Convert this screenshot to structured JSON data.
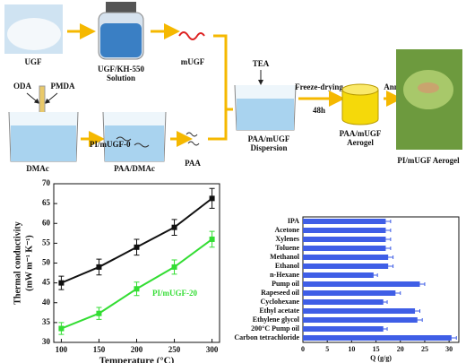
{
  "diagram": {
    "ugf": "UGF",
    "kh550": [
      "UGF/KH-550",
      "Solution"
    ],
    "mugf": "mUGF",
    "oda": "ODA",
    "pmda": "PMDA",
    "dmac": "DMAc",
    "paa_dmac": "PAA/DMAc",
    "paa": "PAA",
    "tea": "TEA",
    "dispersion": [
      "PAA/mUGF",
      "Dispersion"
    ],
    "freeze": "Freeze-drying",
    "hours": "48h",
    "aerogel": [
      "PAA/mUGF",
      "Aerogel"
    ],
    "annealing": "Annealing",
    "final": "PI/mUGF  Aerogel"
  },
  "chart_data": [
    {
      "type": "line",
      "x_label": "Temperature (°C)",
      "y_label": [
        "Thermal conductivity",
        "(mW m⁻¹ K⁻¹)"
      ],
      "x": [
        100,
        150,
        200,
        250,
        300
      ],
      "xlim": [
        90,
        310
      ],
      "xticks": [
        100,
        150,
        200,
        250,
        300
      ],
      "ylim": [
        30,
        70
      ],
      "yticks": [
        30,
        35,
        40,
        45,
        50,
        55,
        60,
        65,
        70
      ],
      "series": [
        {
          "name": "PI/mUGF-0",
          "color": "#111111",
          "values": [
            45,
            49,
            54,
            59,
            66.3
          ],
          "errors": [
            1.7,
            2,
            2,
            2,
            2.5
          ]
        },
        {
          "name": "PI/mUGF-20",
          "color": "#33dd33",
          "values": [
            33.5,
            37.3,
            43.5,
            49,
            56
          ],
          "errors": [
            1.5,
            1.5,
            1.7,
            1.8,
            2
          ]
        }
      ]
    },
    {
      "type": "barh",
      "x_label": "Q (g/g)",
      "categories": [
        "IPA",
        "Acetone",
        "Xylenes",
        "Toluene",
        "Methanol",
        "Ethanol",
        "n-Hexane",
        "Pump oil",
        "Rapeseed oil",
        "Cyclohexane",
        "Ethyl acetate",
        "Ethylene glycol",
        "200°C Pump oil",
        "Carbon tetrachloride"
      ],
      "values": [
        17,
        17,
        17,
        17,
        17.5,
        17.5,
        14.5,
        24,
        19,
        16.5,
        23,
        23.5,
        16.5,
        30.5
      ],
      "errors": [
        1,
        1,
        1,
        1,
        1,
        1,
        0.8,
        1,
        1,
        0.8,
        1,
        1,
        0.8,
        1
      ],
      "color": "#3f5ee6",
      "xlim": [
        0,
        32
      ],
      "xticks": [
        0,
        5,
        10,
        15,
        20,
        25,
        30
      ]
    }
  ]
}
